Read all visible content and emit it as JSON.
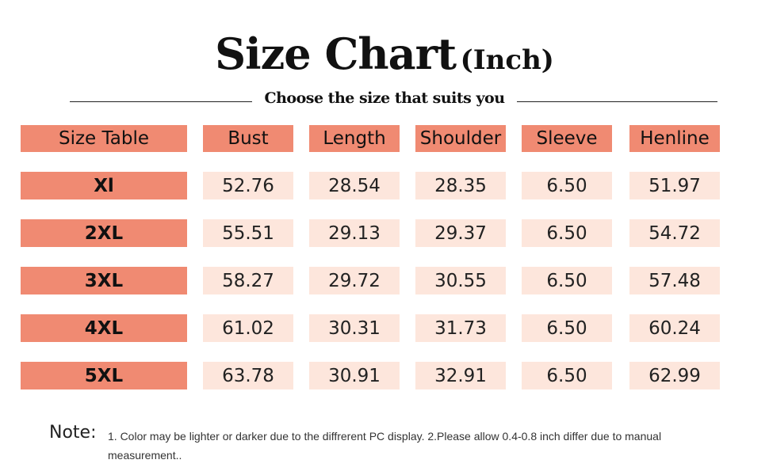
{
  "header": {
    "title": "Size Chart",
    "title_unit": "(Inch)",
    "subtitle": "Choose the size that suits you"
  },
  "table": {
    "columns": [
      "Size Table",
      "Bust",
      "Length",
      "Shoulder",
      "Sleeve",
      "Henline"
    ],
    "rows": [
      [
        "Xl",
        "52.76",
        "28.54",
        "28.35",
        "6.50",
        "51.97"
      ],
      [
        "2XL",
        "55.51",
        "29.13",
        "29.37",
        "6.50",
        "54.72"
      ],
      [
        "3XL",
        "58.27",
        "29.72",
        "30.55",
        "6.50",
        "57.48"
      ],
      [
        "4XL",
        "61.02",
        "30.31",
        "31.73",
        "6.50",
        "60.24"
      ],
      [
        "5XL",
        "63.78",
        "30.91",
        "32.91",
        "6.50",
        "62.99"
      ]
    ]
  },
  "note": {
    "label": "Note:",
    "text": "1. Color may be lighter or darker due to the diffrerent PC display. 2.Please allow 0.4-0.8 inch differ due to manual measurement.."
  }
}
